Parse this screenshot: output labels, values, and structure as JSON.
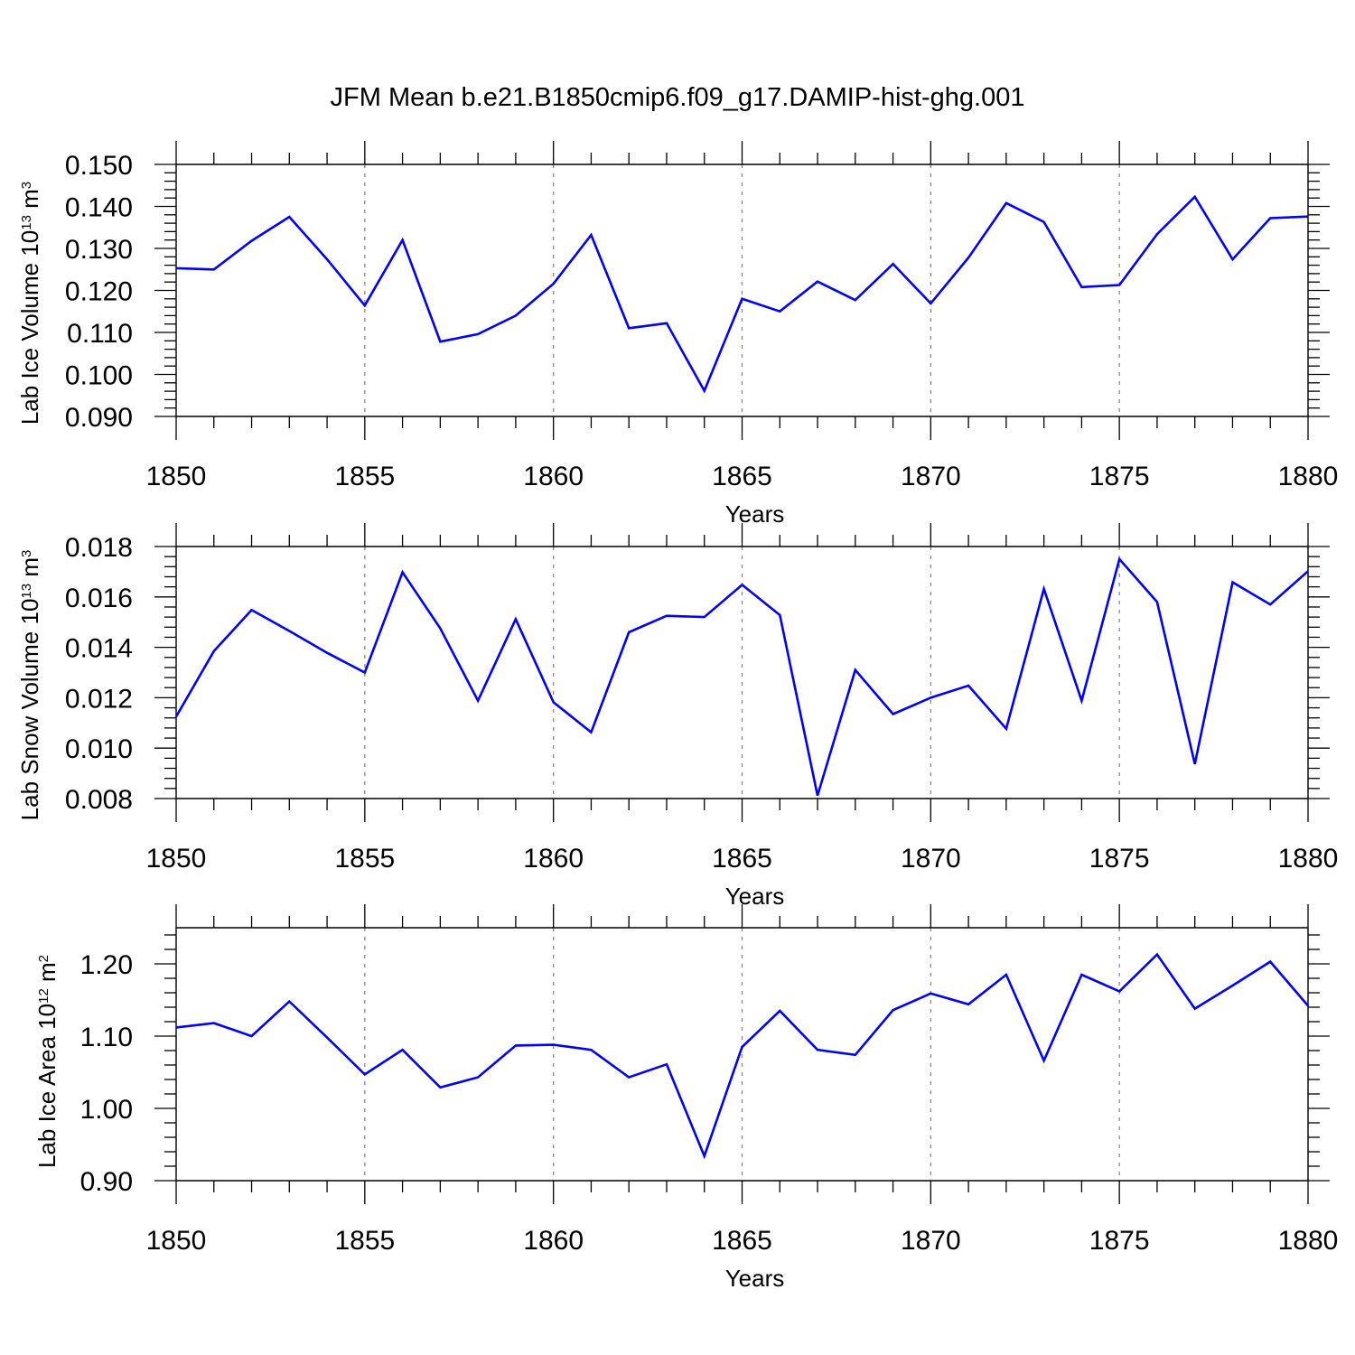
{
  "title": "JFM Mean b.e21.B1850cmip6.f09_g17.DAMIP-hist-ghg.001",
  "colors": {
    "line": "#0000ff",
    "axis": "#000000",
    "grid": "#888888"
  },
  "chart_data": [
    {
      "type": "line",
      "ylabel": {
        "base": "Lab Ice Volume 10",
        "exp": "13",
        "unit": " m",
        "unit_exp": "3"
      },
      "xlabel": "Years",
      "xlim": [
        1850,
        1880
      ],
      "ylim": [
        0.09,
        0.15
      ],
      "yticks": [
        0.09,
        0.1,
        0.11,
        0.12,
        0.13,
        0.14,
        0.15
      ],
      "ytick_labels": [
        "0.090",
        "0.100",
        "0.110",
        "0.120",
        "0.130",
        "0.140",
        "0.150"
      ],
      "xticks": [
        1850,
        1855,
        1860,
        1865,
        1870,
        1875,
        1880
      ],
      "xtick_labels": [
        "1850",
        "1855",
        "1860",
        "1865",
        "1870",
        "1875",
        "1880"
      ],
      "x": [
        1850,
        1851,
        1852,
        1853,
        1854,
        1855,
        1856,
        1857,
        1858,
        1859,
        1860,
        1861,
        1862,
        1863,
        1864,
        1865,
        1866,
        1867,
        1868,
        1869,
        1870,
        1871,
        1872,
        1873,
        1874,
        1875,
        1876,
        1877,
        1878,
        1879,
        1880
      ],
      "values": [
        0.1253,
        0.125,
        0.1318,
        0.1375,
        0.1274,
        0.1164,
        0.132,
        0.1078,
        0.1096,
        0.114,
        0.1216,
        0.1332,
        0.111,
        0.1122,
        0.0961,
        0.118,
        0.115,
        0.1221,
        0.1177,
        0.1263,
        0.1169,
        0.1278,
        0.1408,
        0.1363,
        0.1208,
        0.1213,
        0.1334,
        0.1423,
        0.1274,
        0.1372,
        0.1376
      ]
    },
    {
      "type": "line",
      "ylabel": {
        "base": "Lab Snow Volume 10",
        "exp": "13",
        "unit": " m",
        "unit_exp": "3"
      },
      "xlabel": "Years",
      "xlim": [
        1850,
        1880
      ],
      "ylim": [
        0.008,
        0.018
      ],
      "yticks": [
        0.008,
        0.01,
        0.012,
        0.014,
        0.016,
        0.018
      ],
      "ytick_labels": [
        "0.008",
        "0.010",
        "0.012",
        "0.014",
        "0.016",
        "0.018"
      ],
      "xticks": [
        1850,
        1855,
        1860,
        1865,
        1870,
        1875,
        1880
      ],
      "xtick_labels": [
        "1850",
        "1855",
        "1860",
        "1865",
        "1870",
        "1875",
        "1880"
      ],
      "x": [
        1850,
        1851,
        1852,
        1853,
        1854,
        1855,
        1856,
        1857,
        1858,
        1859,
        1860,
        1861,
        1862,
        1863,
        1864,
        1865,
        1866,
        1867,
        1868,
        1869,
        1870,
        1871,
        1872,
        1873,
        1874,
        1875,
        1876,
        1877,
        1878,
        1879,
        1880
      ],
      "values": [
        0.01125,
        0.01385,
        0.01548,
        0.01465,
        0.01378,
        0.013,
        0.01698,
        0.01475,
        0.01188,
        0.01512,
        0.01182,
        0.01063,
        0.0146,
        0.01525,
        0.0152,
        0.01648,
        0.01528,
        0.00812,
        0.0131,
        0.01135,
        0.012,
        0.01248,
        0.01077,
        0.01632,
        0.01188,
        0.0175,
        0.0158,
        0.00937,
        0.01658,
        0.0157,
        0.01702
      ]
    },
    {
      "type": "line",
      "ylabel": {
        "base": "Lab Ice Area 10",
        "exp": "12",
        "unit": " m",
        "unit_exp": "2"
      },
      "xlabel": "Years",
      "xlim": [
        1850,
        1880
      ],
      "ylim": [
        0.9,
        1.25
      ],
      "yticks": [
        0.9,
        1.0,
        1.1,
        1.2
      ],
      "ytick_labels": [
        "0.90",
        "1.00",
        "1.10",
        "1.20"
      ],
      "xticks": [
        1850,
        1855,
        1860,
        1865,
        1870,
        1875,
        1880
      ],
      "xtick_labels": [
        "1850",
        "1855",
        "1860",
        "1865",
        "1870",
        "1875",
        "1880"
      ],
      "x": [
        1850,
        1851,
        1852,
        1853,
        1854,
        1855,
        1856,
        1857,
        1858,
        1859,
        1860,
        1861,
        1862,
        1863,
        1864,
        1865,
        1866,
        1867,
        1868,
        1869,
        1870,
        1871,
        1872,
        1873,
        1874,
        1875,
        1876,
        1877,
        1878,
        1879,
        1880
      ],
      "values": [
        1.112,
        1.118,
        1.1,
        1.148,
        1.098,
        1.047,
        1.081,
        1.029,
        1.043,
        1.087,
        1.088,
        1.081,
        1.043,
        1.061,
        0.934,
        1.085,
        1.135,
        1.081,
        1.074,
        1.136,
        1.159,
        1.144,
        1.185,
        1.066,
        1.185,
        1.162,
        1.213,
        1.138,
        1.17,
        1.203,
        1.142
      ]
    }
  ]
}
